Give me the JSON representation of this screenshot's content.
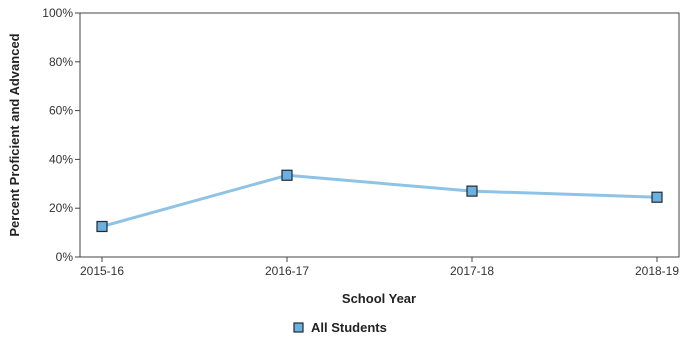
{
  "chart_data": {
    "type": "line",
    "categories": [
      "2015-16",
      "2016-17",
      "2017-18",
      "2018-19"
    ],
    "series": [
      {
        "name": "All Students",
        "values": [
          12.5,
          33.5,
          27,
          24.5
        ]
      }
    ],
    "xlabel": "School Year",
    "ylabel": "Percent Proficient and Advanced",
    "ylim": [
      0,
      100
    ],
    "y_ticks": [
      0,
      20,
      40,
      60,
      80,
      100
    ],
    "y_tick_labels": [
      "0%",
      "20%",
      "40%",
      "60%",
      "80%",
      "100%"
    ],
    "grid": false,
    "legend_position": "bottom-center"
  },
  "colors": {
    "line": "#8ec3e6",
    "marker_fill": "#6bb0de",
    "marker_stroke": "#1f2a36",
    "axis": "#444444"
  }
}
